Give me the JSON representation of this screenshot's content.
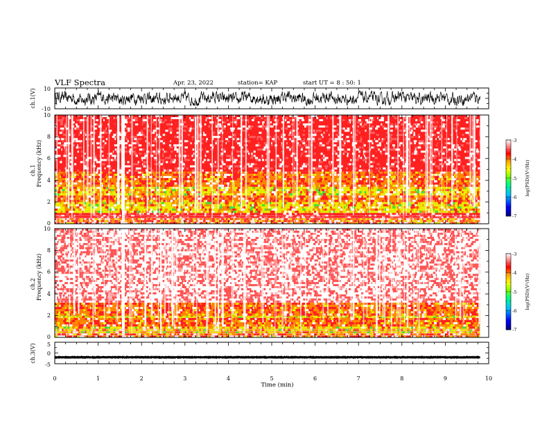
{
  "header": {
    "title": "VLF Spectra",
    "date": "Apr. 23, 2022",
    "station": "station= KAP",
    "start": "start UT =  8 : 50: 1"
  },
  "chart_data": [
    {
      "type": "line",
      "panel": "ch1-waveform",
      "ylabel": "ch.1(V)",
      "ylim": [
        -10,
        10
      ],
      "yticks": [
        "10",
        "-10"
      ],
      "xlim": [
        0,
        10
      ],
      "data_end_min": 9.8,
      "amplitude_range": [
        -7,
        7
      ],
      "color": "#000000"
    },
    {
      "type": "heatmap",
      "panel": "ch1-spectrogram",
      "ylabel_line1": "ch.1",
      "ylabel_line2": "Frequency (kHz)",
      "ylim": [
        0,
        10
      ],
      "yticks": [
        "0",
        "2",
        "4",
        "6",
        "8",
        "10"
      ],
      "xlim": [
        0,
        10
      ],
      "data_end_min": 9.8,
      "bands": [
        {
          "f0": 0.0,
          "f1": 0.5,
          "level": "mixed"
        },
        {
          "f0": 0.5,
          "f1": 1.0,
          "level": "red"
        },
        {
          "f0": 1.0,
          "f1": 2.0,
          "level": "yellow"
        },
        {
          "f0": 2.0,
          "f1": 2.6,
          "level": "orange"
        },
        {
          "f0": 2.6,
          "f1": 3.4,
          "level": "yellow"
        },
        {
          "f0": 3.4,
          "f1": 4.8,
          "level": "orange"
        },
        {
          "f0": 4.8,
          "f1": 10.0,
          "level": "red"
        }
      ],
      "white_gap_min": 1.55
    },
    {
      "type": "heatmap",
      "panel": "ch2-spectrogram",
      "ylabel_line1": "ch.2",
      "ylabel_line2": "Frequency (kHz)",
      "ylim": [
        0,
        10
      ],
      "yticks": [
        "0",
        "2",
        "4",
        "6",
        "8",
        "10"
      ],
      "xlim": [
        0,
        10
      ],
      "data_end_min": 9.8,
      "bands": [
        {
          "f0": 0.0,
          "f1": 0.4,
          "level": "mixed"
        },
        {
          "f0": 0.4,
          "f1": 1.0,
          "level": "yellow"
        },
        {
          "f0": 1.0,
          "f1": 1.8,
          "level": "orange"
        },
        {
          "f0": 1.8,
          "f1": 2.0,
          "level": "yellow"
        },
        {
          "f0": 2.0,
          "f1": 3.2,
          "level": "orange"
        },
        {
          "f0": 3.2,
          "f1": 10.0,
          "level": "sparse"
        }
      ],
      "white_gap_min": 1.55
    },
    {
      "type": "line",
      "panel": "ch3-waveform",
      "ylabel": "ch.3(V)",
      "ylim": [
        -5,
        5
      ],
      "yticks": [
        "5",
        "0",
        "-5"
      ],
      "xlim": [
        0,
        10
      ],
      "data_end_min": 9.8,
      "offset": -2,
      "color": "#000000",
      "xlabel": "Time (min)",
      "xticks": [
        "0",
        "1",
        "2",
        "3",
        "4",
        "5",
        "6",
        "7",
        "8",
        "9",
        "10"
      ]
    }
  ],
  "colorbar": {
    "label": "log(PSD)(V²/Hz)",
    "ticks": [
      "-3",
      "-4",
      "-5",
      "-6",
      "-7"
    ],
    "range": [
      -7,
      -3
    ],
    "colors": [
      "#000080",
      "#0000ff",
      "#00bfff",
      "#00ff7f",
      "#7fff00",
      "#ffff00",
      "#ffa500",
      "#ff0000",
      "#ffffff"
    ]
  },
  "palette": {
    "red": "#ff2020",
    "orange": "#ff8a00",
    "yellow": "#e8f000",
    "green": "#40e040",
    "white": "#ffffff"
  }
}
